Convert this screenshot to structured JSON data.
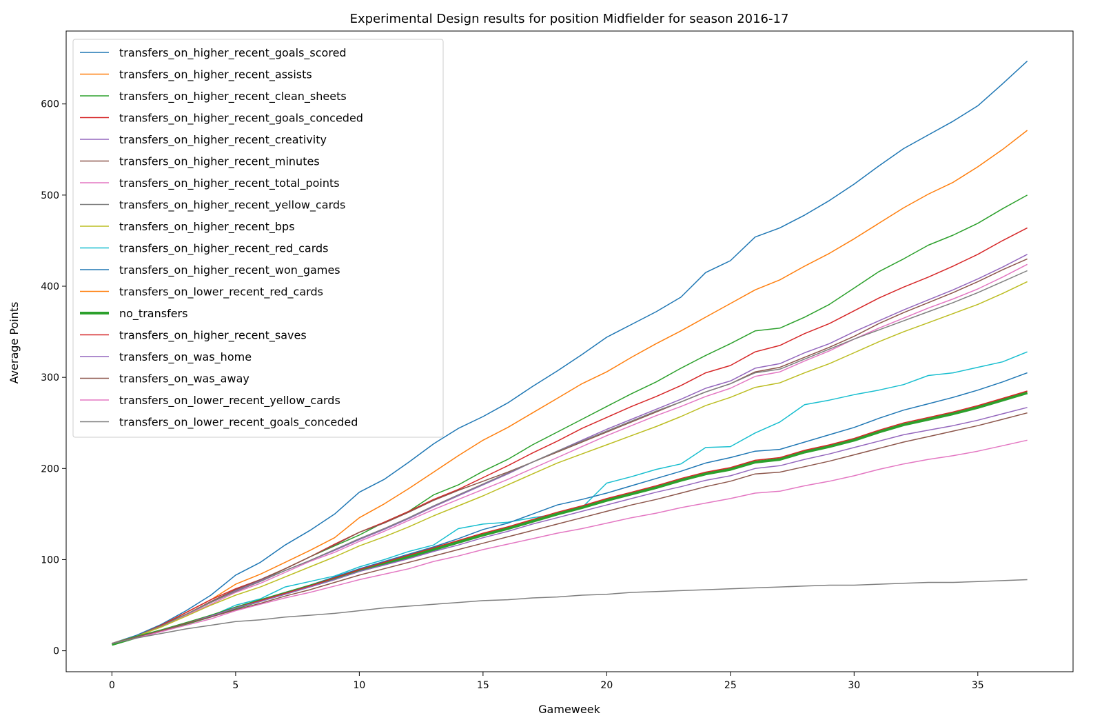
{
  "chart_data": {
    "type": "line",
    "title": "Experimental Design results for position Midfielder for season 2016-17",
    "xlabel": "Gameweek",
    "ylabel": "Average Points",
    "xlim": [
      -1.85,
      38.85
    ],
    "ylim": [
      -23,
      680
    ],
    "xticks": [
      0,
      5,
      10,
      15,
      20,
      25,
      30,
      35
    ],
    "yticks": [
      0,
      100,
      200,
      300,
      400,
      500,
      600
    ],
    "grid": false,
    "legend_position": "upper-left",
    "series": [
      {
        "name": "transfers_on_higher_recent_goals_scored",
        "color": "#1f77b4",
        "width": 1.5,
        "values": [
          8,
          17,
          29,
          44,
          61,
          83,
          97,
          116,
          132,
          150,
          174,
          188,
          207,
          227,
          244,
          257,
          272,
          290,
          307,
          325,
          344,
          358,
          372,
          388,
          415,
          428,
          454,
          464,
          478,
          494,
          512,
          532,
          551,
          566,
          581,
          598,
          622,
          647
        ]
      },
      {
        "name": "transfers_on_higher_recent_assists",
        "color": "#ff7f0e",
        "width": 1.5,
        "values": [
          8,
          16,
          28,
          42,
          56,
          73,
          84,
          97,
          110,
          124,
          146,
          161,
          178,
          196,
          214,
          231,
          245,
          261,
          277,
          293,
          306,
          322,
          337,
          351,
          366,
          381,
          396,
          407,
          422,
          436,
          452,
          469,
          486,
          501,
          514,
          531,
          550,
          571
        ]
      },
      {
        "name": "transfers_on_higher_recent_clean_sheets",
        "color": "#2ca02c",
        "width": 1.5,
        "values": [
          8,
          16,
          28,
          40,
          53,
          66,
          77,
          90,
          103,
          115,
          127,
          141,
          153,
          171,
          182,
          197,
          210,
          226,
          240,
          254,
          268,
          282,
          295,
          310,
          324,
          337,
          351,
          354,
          366,
          380,
          398,
          416,
          430,
          445,
          456,
          469,
          485,
          500
        ]
      },
      {
        "name": "transfers_on_higher_recent_goals_conceded",
        "color": "#d62728",
        "width": 1.5,
        "values": [
          8,
          16,
          28,
          42,
          56,
          68,
          78,
          90,
          103,
          117,
          130,
          141,
          153,
          166,
          177,
          190,
          203,
          217,
          230,
          244,
          256,
          268,
          279,
          291,
          305,
          313,
          328,
          335,
          348,
          359,
          373,
          387,
          399,
          410,
          422,
          435,
          450,
          464
        ]
      },
      {
        "name": "transfers_on_higher_recent_creativity",
        "color": "#9467bd",
        "width": 1.5,
        "values": [
          8,
          16,
          27,
          40,
          53,
          66,
          77,
          88,
          99,
          110,
          122,
          133,
          145,
          158,
          170,
          182,
          194,
          207,
          219,
          231,
          243,
          254,
          265,
          276,
          288,
          296,
          310,
          315,
          327,
          337,
          350,
          362,
          374,
          385,
          396,
          408,
          421,
          435
        ]
      },
      {
        "name": "transfers_on_higher_recent_minutes",
        "color": "#8c564b",
        "width": 1.5,
        "values": [
          8,
          16,
          27,
          40,
          54,
          67,
          78,
          90,
          103,
          116,
          130,
          140,
          152,
          165,
          176,
          186,
          196,
          207,
          218,
          229,
          240,
          251,
          262,
          273,
          284,
          293,
          306,
          311,
          322,
          333,
          345,
          359,
          371,
          382,
          393,
          405,
          418,
          430
        ]
      },
      {
        "name": "transfers_on_higher_recent_total_points",
        "color": "#e377c2",
        "width": 1.5,
        "values": [
          8,
          16,
          27,
          39,
          51,
          64,
          74,
          86,
          98,
          108,
          120,
          131,
          143,
          155,
          166,
          177,
          188,
          200,
          212,
          224,
          236,
          247,
          258,
          268,
          279,
          288,
          301,
          306,
          318,
          329,
          342,
          354,
          365,
          376,
          386,
          397,
          410,
          424
        ]
      },
      {
        "name": "transfers_on_higher_recent_yellow_cards",
        "color": "#7f7f7f",
        "width": 1.5,
        "values": [
          8,
          16,
          27,
          40,
          53,
          65,
          76,
          88,
          99,
          111,
          123,
          134,
          146,
          159,
          171,
          183,
          195,
          207,
          219,
          230,
          241,
          252,
          263,
          273,
          284,
          293,
          305,
          309,
          320,
          331,
          342,
          352,
          362,
          372,
          382,
          393,
          405,
          417
        ]
      },
      {
        "name": "transfers_on_higher_recent_bps",
        "color": "#bcbd22",
        "width": 1.5,
        "values": [
          8,
          16,
          26,
          38,
          50,
          61,
          70,
          81,
          92,
          103,
          115,
          125,
          136,
          148,
          159,
          170,
          182,
          194,
          206,
          216,
          226,
          236,
          246,
          257,
          269,
          278,
          289,
          294,
          305,
          315,
          327,
          339,
          350,
          360,
          370,
          380,
          392,
          405
        ]
      },
      {
        "name": "transfers_on_higher_recent_red_cards",
        "color": "#17becf",
        "width": 1.5,
        "values": [
          8,
          15,
          22,
          30,
          38,
          50,
          57,
          70,
          76,
          82,
          92,
          100,
          109,
          116,
          134,
          139,
          141,
          146,
          150,
          157,
          184,
          191,
          199,
          205,
          223,
          224,
          239,
          251,
          270,
          275,
          281,
          286,
          292,
          302,
          305,
          311,
          317,
          328
        ]
      },
      {
        "name": "transfers_on_higher_recent_won_games",
        "color": "#1f77b4",
        "width": 1.5,
        "values": [
          8,
          15,
          22,
          30,
          39,
          48,
          56,
          64,
          72,
          81,
          90,
          98,
          106,
          114,
          123,
          133,
          140,
          150,
          160,
          166,
          173,
          181,
          189,
          197,
          206,
          212,
          219,
          221,
          229,
          237,
          245,
          255,
          264,
          271,
          278,
          286,
          295,
          305
        ]
      },
      {
        "name": "transfers_on_lower_recent_red_cards",
        "color": "#ff7f0e",
        "width": 1.5,
        "values": [
          8,
          15,
          22,
          30,
          38,
          47,
          55,
          63,
          71,
          79,
          88,
          95,
          103,
          111,
          119,
          127,
          134,
          142,
          150,
          157,
          165,
          172,
          179,
          187,
          194,
          199,
          207,
          210,
          218,
          224,
          231,
          240,
          248,
          254,
          260,
          267,
          275,
          284
        ]
      },
      {
        "name": "no_transfers",
        "color": "#2ca02c",
        "width": 4,
        "values": [
          7,
          15,
          22,
          30,
          38,
          47,
          55,
          63,
          71,
          79,
          88,
          95,
          103,
          111,
          119,
          127,
          134,
          142,
          150,
          157,
          165,
          172,
          179,
          187,
          194,
          199,
          207,
          210,
          218,
          224,
          231,
          240,
          248,
          254,
          260,
          267,
          275,
          283
        ]
      },
      {
        "name": "transfers_on_higher_recent_saves",
        "color": "#d62728",
        "width": 1.5,
        "values": [
          8,
          15,
          22,
          30,
          38,
          47,
          55,
          63,
          71,
          80,
          89,
          97,
          105,
          113,
          121,
          129,
          136,
          144,
          152,
          159,
          167,
          174,
          181,
          189,
          196,
          201,
          209,
          212,
          220,
          226,
          233,
          242,
          250,
          256,
          262,
          269,
          277,
          285
        ]
      },
      {
        "name": "transfers_on_was_home",
        "color": "#9467bd",
        "width": 1.5,
        "values": [
          8,
          15,
          22,
          30,
          38,
          47,
          54,
          62,
          70,
          78,
          87,
          94,
          101,
          109,
          116,
          124,
          131,
          139,
          146,
          153,
          160,
          167,
          174,
          180,
          187,
          192,
          200,
          203,
          210,
          216,
          223,
          230,
          237,
          242,
          247,
          253,
          260,
          267
        ]
      },
      {
        "name": "transfers_on_was_away",
        "color": "#8c564b",
        "width": 1.5,
        "values": [
          8,
          15,
          22,
          30,
          37,
          45,
          52,
          60,
          67,
          75,
          83,
          90,
          97,
          104,
          111,
          118,
          125,
          132,
          139,
          146,
          153,
          160,
          166,
          173,
          180,
          186,
          194,
          196,
          202,
          208,
          215,
          222,
          229,
          235,
          241,
          247,
          254,
          261
        ]
      },
      {
        "name": "transfers_on_lower_recent_yellow_cards",
        "color": "#e377c2",
        "width": 1.5,
        "values": [
          8,
          14,
          21,
          28,
          35,
          44,
          51,
          58,
          64,
          71,
          78,
          84,
          90,
          98,
          104,
          111,
          117,
          123,
          129,
          134,
          140,
          146,
          151,
          157,
          162,
          167,
          173,
          175,
          181,
          186,
          192,
          199,
          205,
          210,
          214,
          219,
          225,
          231
        ]
      },
      {
        "name": "transfers_on_lower_recent_goals_conceded",
        "color": "#7f7f7f",
        "width": 1.5,
        "values": [
          8,
          14,
          19,
          24,
          28,
          32,
          34,
          37,
          39,
          41,
          44,
          47,
          49,
          51,
          53,
          55,
          56,
          58,
          59,
          61,
          62,
          64,
          65,
          66,
          67,
          68,
          69,
          70,
          71,
          72,
          72,
          73,
          74,
          75,
          75,
          76,
          77,
          78
        ]
      }
    ]
  }
}
